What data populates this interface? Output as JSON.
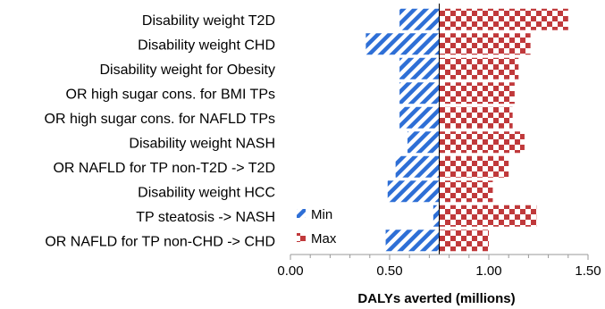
{
  "chart_data": {
    "type": "bar",
    "orientation": "horizontal",
    "subtype": "tornado",
    "baseline": 0.75,
    "categories": [
      "Disability weight T2D",
      "Disability weight CHD",
      "Disability weight for Obesity",
      "OR high sugar cons. for BMI TPs",
      "OR high sugar cons. for NAFLD TPs",
      "Disability weight NASH",
      "OR NAFLD for TP non-T2D -> T2D",
      "Disability weight HCC",
      "TP steatosis -> NASH",
      "OR NAFLD for TP non-CHD -> CHD"
    ],
    "series": [
      {
        "name": "Min",
        "color": "#2e6fd6",
        "pattern": "diagonal-stripes",
        "values": [
          0.55,
          0.38,
          0.55,
          0.55,
          0.55,
          0.59,
          0.53,
          0.49,
          0.72,
          0.48
        ]
      },
      {
        "name": "Max",
        "color": "#c0393b",
        "pattern": "checkerboard",
        "values": [
          1.4,
          1.21,
          1.15,
          1.13,
          1.12,
          1.18,
          1.1,
          1.02,
          1.24,
          1.0
        ]
      }
    ],
    "xlabel": "DALYs averted (millions)",
    "ylabel": "",
    "xlim": [
      0.0,
      1.5
    ],
    "xticks": [
      "0.00",
      "0.50",
      "1.00",
      "1.50"
    ],
    "grid": false,
    "legend_position": "lower-left inside plot"
  }
}
